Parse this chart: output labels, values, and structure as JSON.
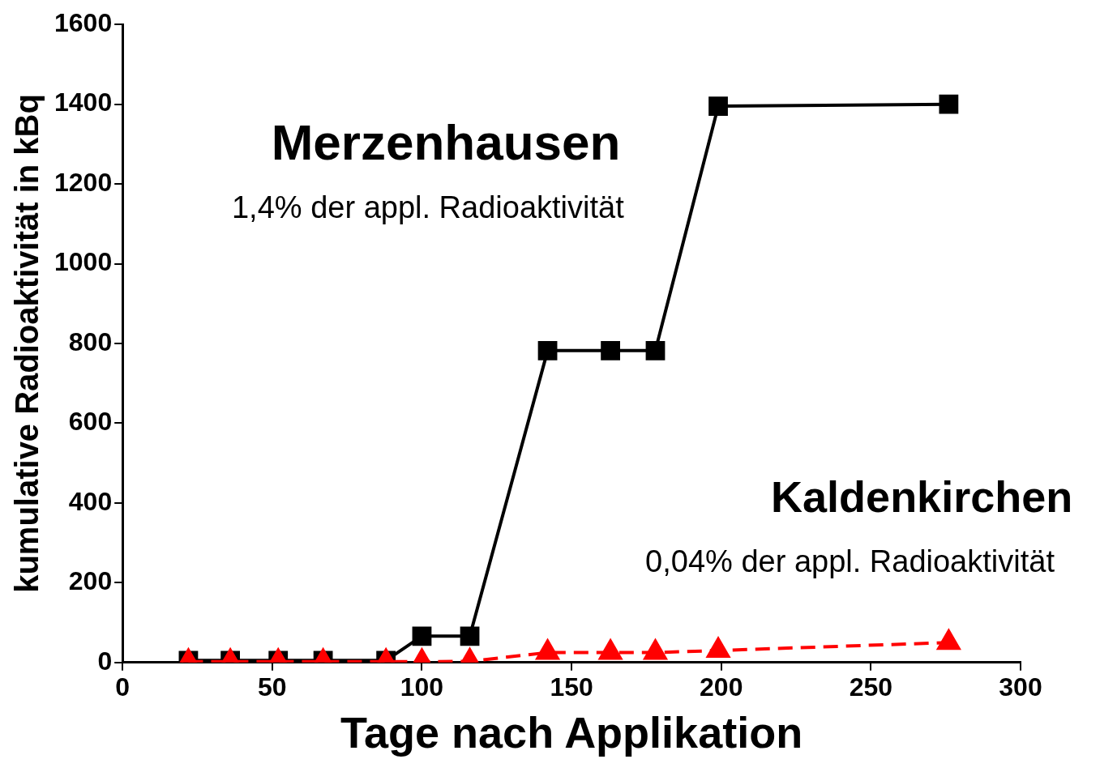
{
  "chart_data": {
    "type": "line",
    "xlabel": "Tage nach Applikation",
    "ylabel": "kumulative Radioaktivität in kBq",
    "xlim": [
      0,
      300
    ],
    "xticks": [
      0,
      50,
      100,
      150,
      200,
      250,
      300
    ],
    "ylim": [
      0,
      1600
    ],
    "yticks": [
      0,
      200,
      400,
      600,
      800,
      1000,
      1200,
      1400,
      1600
    ],
    "grid": false,
    "legend": false,
    "x": [
      22,
      36,
      52,
      67,
      88,
      100,
      116,
      142,
      163,
      178,
      199,
      276
    ],
    "series": [
      {
        "color": "#000000",
        "marker": "square",
        "line_style": "solid",
        "values": [
          5,
          5,
          5,
          5,
          5,
          66,
          66,
          782,
          782,
          782,
          1395,
          1400
        ]
      },
      {
        "color": "#ff0000",
        "marker": "triangle",
        "line_style": "dashed",
        "values": [
          2,
          2,
          2,
          2,
          2,
          2,
          3,
          25,
          25,
          25,
          30,
          50
        ]
      }
    ],
    "annotations": [
      "Merzenhausen",
      "1,4% der appl. Radioaktivität",
      "Kaldenkirchen",
      "0,04% der appl. Radioaktivität"
    ]
  }
}
